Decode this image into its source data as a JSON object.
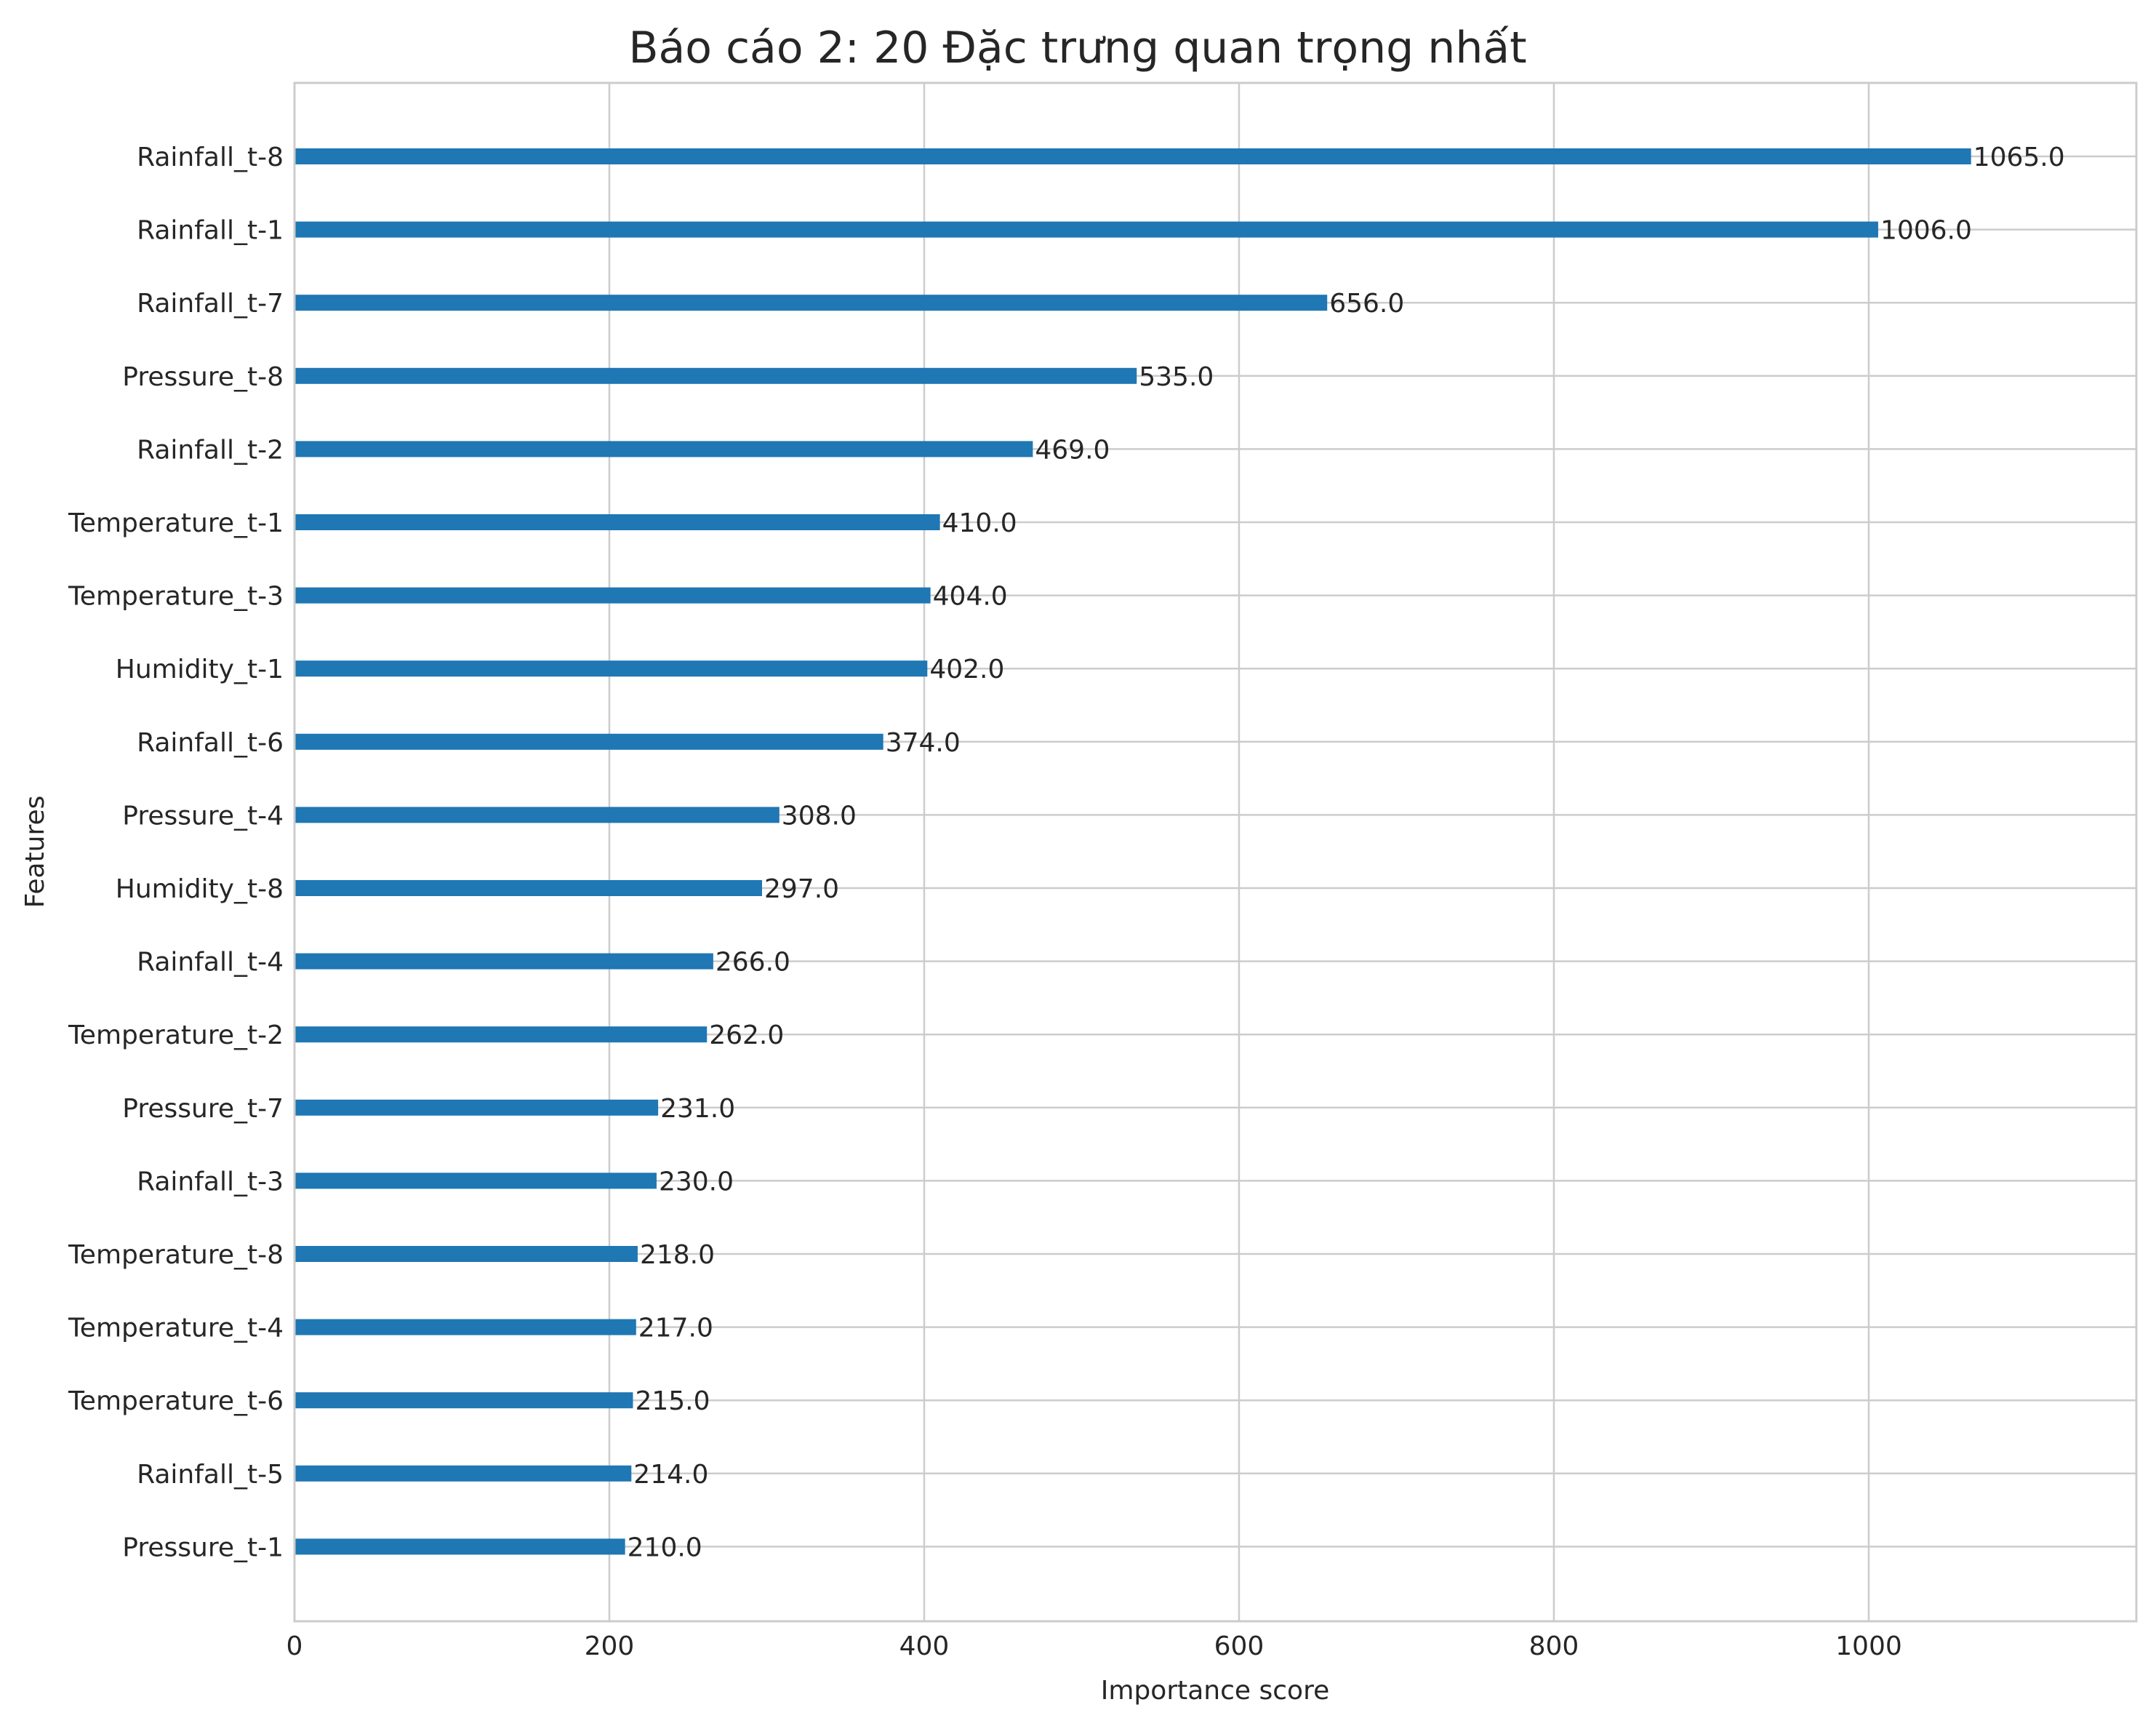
{
  "chart_data": {
    "type": "bar",
    "orientation": "horizontal",
    "title": "Báo cáo 2: 20 Đặc trưng quan trọng nhất",
    "xlabel": "Importance score",
    "ylabel": "Features",
    "xlim": [
      0,
      1170
    ],
    "xticks": [
      0,
      200,
      400,
      600,
      800,
      1000
    ],
    "grid": true,
    "bar_color": "#1f77b4",
    "categories": [
      "Rainfall_t-8",
      "Rainfall_t-1",
      "Rainfall_t-7",
      "Pressure_t-8",
      "Rainfall_t-2",
      "Temperature_t-1",
      "Temperature_t-3",
      "Humidity_t-1",
      "Rainfall_t-6",
      "Pressure_t-4",
      "Humidity_t-8",
      "Rainfall_t-4",
      "Temperature_t-2",
      "Pressure_t-7",
      "Rainfall_t-3",
      "Temperature_t-8",
      "Temperature_t-4",
      "Temperature_t-6",
      "Rainfall_t-5",
      "Pressure_t-1"
    ],
    "values": [
      1065,
      1006,
      656,
      535,
      469,
      410,
      404,
      402,
      374,
      308,
      297,
      266,
      262,
      231,
      230,
      218,
      217,
      215,
      214,
      210
    ],
    "value_labels": [
      "1065.0",
      "1006.0",
      "656.0",
      "535.0",
      "469.0",
      "410.0",
      "404.0",
      "402.0",
      "374.0",
      "308.0",
      "297.0",
      "266.0",
      "262.0",
      "231.0",
      "230.0",
      "218.0",
      "217.0",
      "215.0",
      "214.0",
      "210.0"
    ]
  }
}
